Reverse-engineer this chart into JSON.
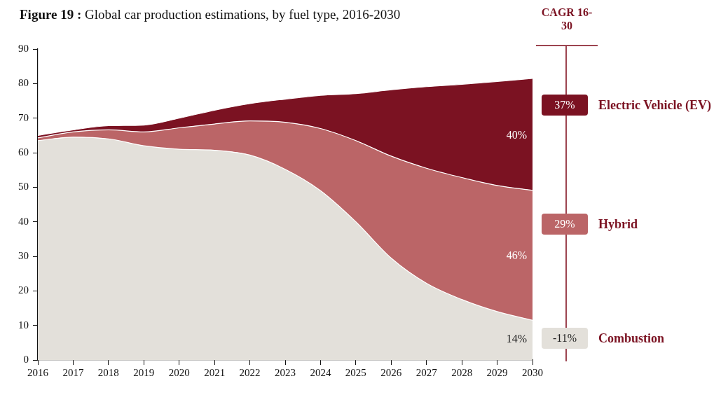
{
  "chart_data": {
    "type": "area",
    "title": "Figure 19 : Global car production estimations, by fuel type, 2016-2030",
    "categories": [
      "2016",
      "2017",
      "2018",
      "2019",
      "2020",
      "2021",
      "2022",
      "2023",
      "2024",
      "2025",
      "2026",
      "2027",
      "2028",
      "2029",
      "2030"
    ],
    "stacked": true,
    "series": [
      {
        "name": "Combustion",
        "color": "#e3e0da",
        "values": [
          63.5,
          64.5,
          64,
          62,
          61,
          60.7,
          59.3,
          55.2,
          49,
          40,
          29.5,
          22.2,
          17.5,
          14,
          11.5
        ]
      },
      {
        "name": "Hybrid",
        "color": "#bb6567",
        "values": [
          0.8,
          1.5,
          2.6,
          4,
          6.2,
          7.6,
          9.9,
          13.6,
          18,
          23.5,
          29.5,
          33.3,
          35.3,
          36.5,
          37.6
        ]
      },
      {
        "name": "Electric Vehicle (EV)",
        "color": "#7b1222",
        "values": [
          0.7,
          0.6,
          1.2,
          2,
          2.8,
          4,
          5,
          6.7,
          9.6,
          13.6,
          19.2,
          23.6,
          27,
          30.1,
          32.4
        ]
      }
    ],
    "ylim": [
      0,
      90
    ],
    "yticks": [
      0,
      10,
      20,
      30,
      40,
      50,
      60,
      70,
      80,
      90
    ],
    "grid": false,
    "legend": "right",
    "legend_title": "CAGR 16-30",
    "annotations": [
      "37%",
      "29%",
      "-11%",
      {
        "text": "40%",
        "x": "2030",
        "y": 65
      },
      {
        "text": "46%",
        "x": "2030",
        "y": 30
      },
      {
        "text": "14%",
        "x": "2030",
        "y": 6
      }
    ]
  }
}
